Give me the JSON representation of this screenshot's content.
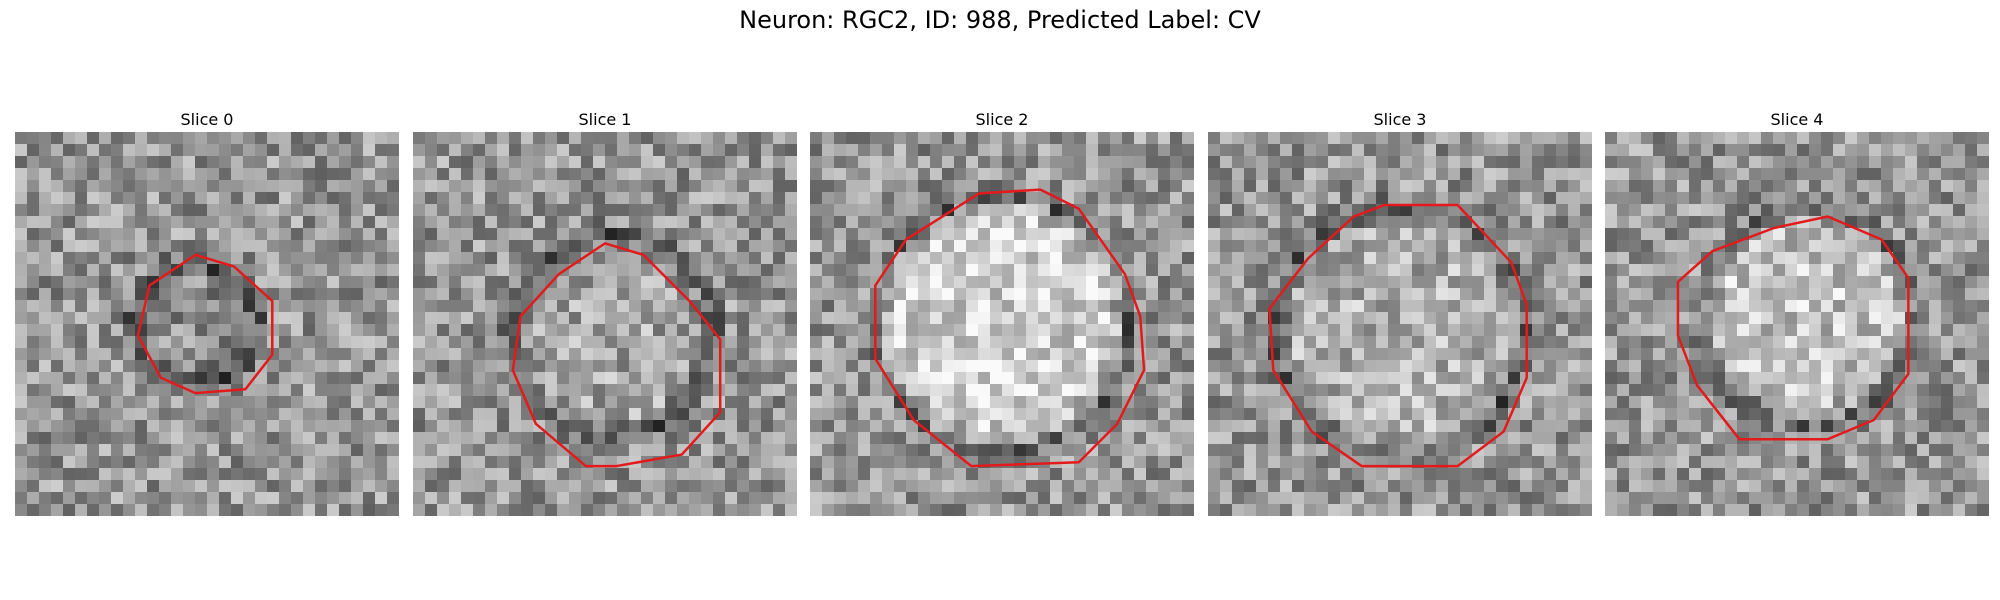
{
  "figure": {
    "title": "Neuron: RGC2, ID: 988, Predicted Label: CV"
  },
  "panels": [
    {
      "title": "Slice 0",
      "outline_color": "#e31a1c",
      "cell_brightness": -10,
      "cell_radius": 0.16
    },
    {
      "title": "Slice 1",
      "outline_color": "#e31a1c",
      "cell_brightness": 15,
      "cell_radius": 0.26
    },
    {
      "title": "Slice 2",
      "outline_color": "#e31a1c",
      "cell_brightness": 60,
      "cell_radius": 0.32
    },
    {
      "title": "Slice 3",
      "outline_color": "#e31a1c",
      "cell_brightness": 25,
      "cell_radius": 0.32
    },
    {
      "title": "Slice 4",
      "outline_color": "#e31a1c",
      "cell_brightness": 45,
      "cell_radius": 0.27
    }
  ]
}
